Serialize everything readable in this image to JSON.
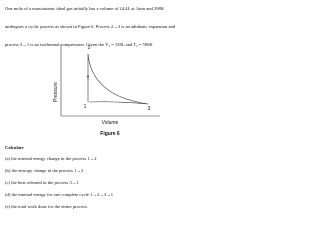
{
  "problem": {
    "lines": [
      "One mole of a monoatomic ideal gas initially has a volume of 24.4L at 1atm and 298K",
      "undergoes a cyclic process as shown in Figure 6. Process 2→3 is an adiabatic expansion and",
      "process 3→1 is an isothermal compression. Given the V₃ = 138L and T₂ = 596K"
    ]
  },
  "figure": {
    "y_label": "Pressure",
    "x_label": "Volume",
    "points": [
      "1",
      "2",
      "3"
    ],
    "caption": "Figure 6"
  },
  "questions": {
    "heading": "Calculate",
    "items": [
      "(a) the internal energy change in the process 1→2",
      "(b) the entropy change in the process 1→2",
      "(c) the heat released in the process 3→1",
      "(d) the internal energy for one complete cycle 1→2→3→1",
      "(e) the total work done for the entire process."
    ]
  }
}
